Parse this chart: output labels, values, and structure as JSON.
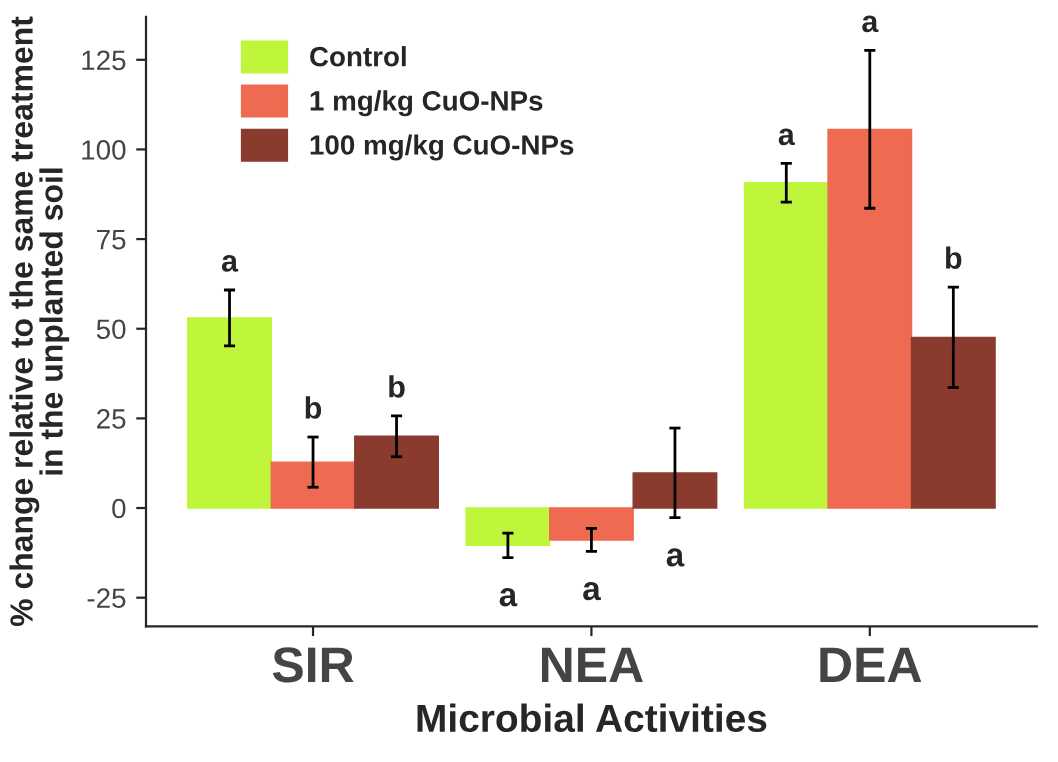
{
  "chart_data": {
    "type": "bar",
    "xlabel": "Microbial Activities",
    "ylabel": "% change relative to the same treatment\nin the unplanted soil",
    "categories": [
      "SIR",
      "NEA",
      "DEA"
    ],
    "series": [
      {
        "name": "Control",
        "color": "#bff53a",
        "values": [
          53,
          -10.4,
          90.7
        ],
        "errors": [
          7.8,
          3.4,
          5.4
        ],
        "value_labels": [
          "a",
          "a",
          "a"
        ]
      },
      {
        "name": "1 mg/kg CuO-NPs",
        "color": "#ee6a50",
        "values": [
          12.8,
          -8.9,
          105.6
        ],
        "errors": [
          7,
          3.2,
          22
        ],
        "value_labels": [
          "b",
          "a",
          "a"
        ]
      },
      {
        "name": "100 mg/kg CuO-NPs",
        "color": "#8b3a2e",
        "values": [
          20,
          9.8,
          47.6
        ],
        "errors": [
          5.7,
          12.5,
          14
        ],
        "value_labels": [
          "b",
          "a",
          "b"
        ]
      }
    ],
    "ylim": [
      -33,
      137
    ],
    "yticks": [
      -25,
      0,
      25,
      50,
      75,
      100,
      125
    ],
    "grid": false,
    "legend": "top left"
  }
}
